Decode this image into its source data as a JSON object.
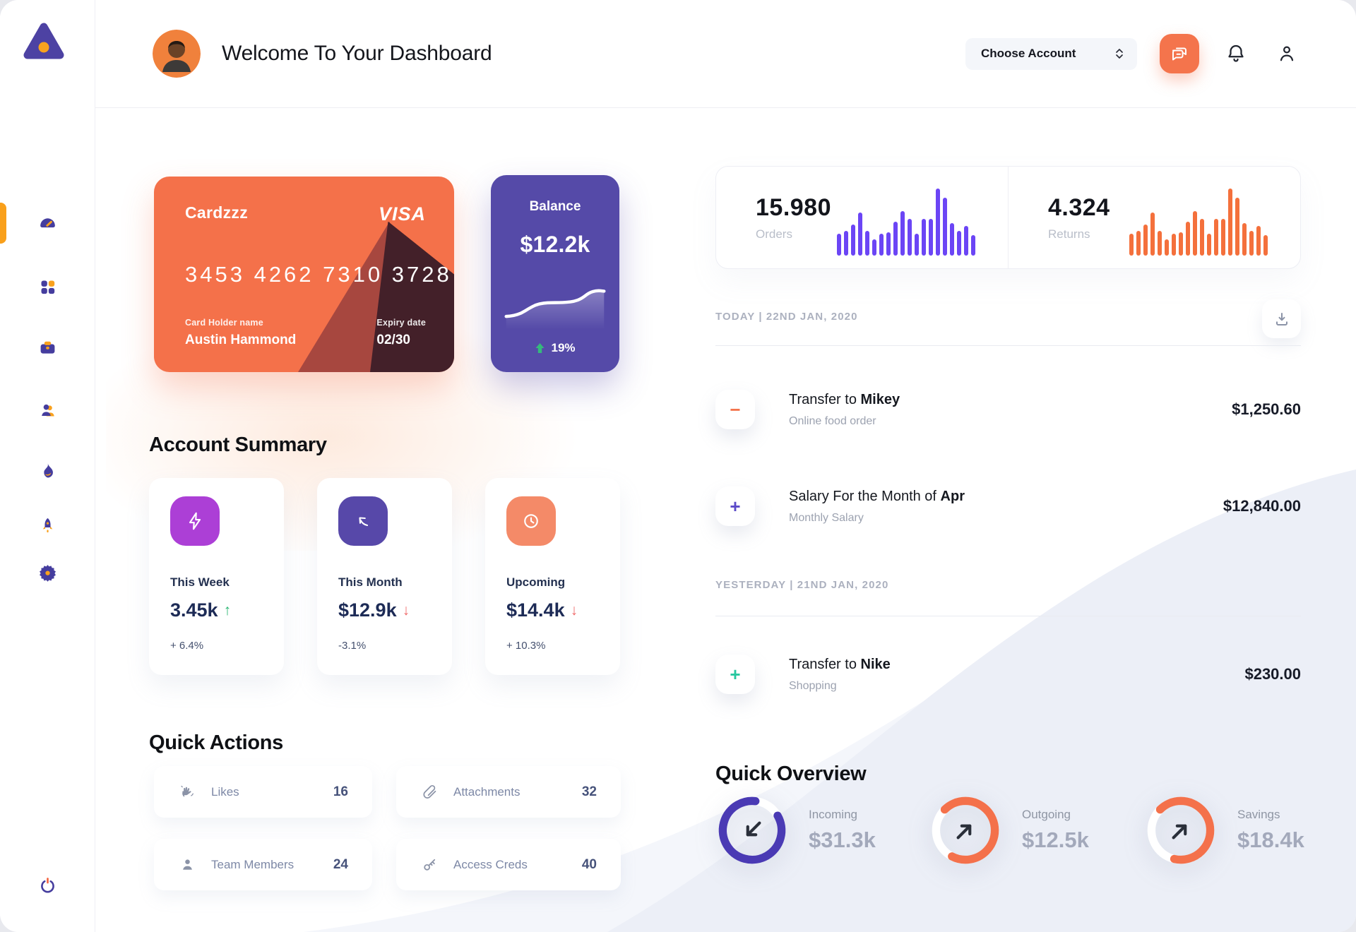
{
  "header": {
    "title": "Welcome To Your Dashboard",
    "account_selector": "Choose Account"
  },
  "credit_card": {
    "name": "Cardzzz",
    "brand": "VISA",
    "number": "3453 4262 7310 3728",
    "holder_label": "Card Holder name",
    "holder": "Austin Hammond",
    "expiry_label": "Expiry date",
    "expiry": "02/30"
  },
  "balance_card": {
    "label": "Balance",
    "value": "$12.2k",
    "change": "19%"
  },
  "stats": {
    "orders": {
      "value": "15.980",
      "label": "Orders"
    },
    "returns": {
      "value": "4.324",
      "label": "Returns"
    }
  },
  "account_summary": {
    "title": "Account Summary",
    "items": [
      {
        "label": "This Week",
        "value": "3.45k",
        "direction_glyph": "↑",
        "change": "+ 6.4%",
        "icon": "bolt-icon"
      },
      {
        "label": "This Month",
        "value": "$12.9k",
        "direction_glyph": "↓",
        "change": "-3.1%",
        "icon": "arrow-up-left-icon"
      },
      {
        "label": "Upcoming",
        "value": "$14.4k",
        "direction_glyph": "↓",
        "change": "+ 10.3%",
        "icon": "clock-icon"
      }
    ]
  },
  "quick_actions": {
    "title": "Quick Actions",
    "items": [
      {
        "label": "Likes",
        "count": "16",
        "icon": "clap-icon"
      },
      {
        "label": "Attachments",
        "count": "32",
        "icon": "paperclip-icon"
      },
      {
        "label": "Team Members",
        "count": "24",
        "icon": "person-icon"
      },
      {
        "label": "Access Creds",
        "count": "40",
        "icon": "key-icon"
      }
    ]
  },
  "transactions": {
    "groups": [
      {
        "date": "TODAY | 22ND JAN, 2020",
        "items": [
          {
            "title": "Transfer to ",
            "title_bold": "Mikey",
            "subtitle": "Online food order",
            "amount": "$1,250.60",
            "sign": "−",
            "sign_color": "#F4744C"
          },
          {
            "title": "Salary For the Month of ",
            "title_bold": "Apr",
            "subtitle": "Monthly Salary",
            "amount": "$12,840.00",
            "sign": "+",
            "sign_color": "#5B4AC8"
          }
        ]
      },
      {
        "date": "YESTERDAY | 21ND JAN, 2020",
        "items": [
          {
            "title": "Transfer to ",
            "title_bold": "Nike",
            "subtitle": "Shopping",
            "amount": "$230.00",
            "sign": "+",
            "sign_color": "#27C79F"
          }
        ]
      }
    ]
  },
  "quick_overview": {
    "title": "Quick Overview",
    "items": [
      {
        "label": "Incoming",
        "value": "$31.3k",
        "percent": 85,
        "color": "#4A3AB4",
        "direction": "down-left"
      },
      {
        "label": "Outgoing",
        "value": "$12.5k",
        "percent": 70,
        "color": "#F4714B",
        "direction": "up-right"
      },
      {
        "label": "Savings",
        "value": "$18.4k",
        "percent": 66,
        "color": "#F4714B",
        "direction": "up-right"
      }
    ]
  },
  "chart_data": [
    {
      "type": "bar",
      "title": "Orders",
      "total_label": "15.980",
      "values": [
        32,
        36,
        46,
        64,
        36,
        24,
        32,
        34,
        50,
        66,
        54,
        32,
        54,
        54,
        100,
        86,
        48,
        36,
        44,
        30
      ],
      "color": "#6B45F5",
      "ylim": [
        0,
        100
      ],
      "grid": false,
      "axes": "hidden"
    },
    {
      "type": "bar",
      "title": "Returns",
      "total_label": "4.324",
      "values": [
        32,
        36,
        46,
        64,
        36,
        24,
        32,
        34,
        50,
        66,
        54,
        32,
        54,
        54,
        100,
        86,
        48,
        36,
        44,
        30
      ],
      "color": "#F4703C",
      "ylim": [
        0,
        100
      ],
      "grid": false,
      "axes": "hidden"
    },
    {
      "type": "line",
      "title": "Balance trend sparkline",
      "values": [
        12,
        14,
        20,
        32,
        42,
        46,
        47,
        47,
        48,
        50,
        57,
        72,
        78,
        76
      ],
      "color": "#FFFFFF",
      "ylim": [
        0,
        100
      ],
      "grid": false,
      "axes": "hidden"
    },
    {
      "type": "donut",
      "title": "Quick Overview rings",
      "items": [
        {
          "label": "Incoming",
          "value_label": "$31.3k",
          "percent": 85
        },
        {
          "label": "Outgoing",
          "value_label": "$12.5k",
          "percent": 70
        },
        {
          "label": "Savings",
          "value_label": "$18.4k",
          "percent": 66
        }
      ]
    }
  ]
}
